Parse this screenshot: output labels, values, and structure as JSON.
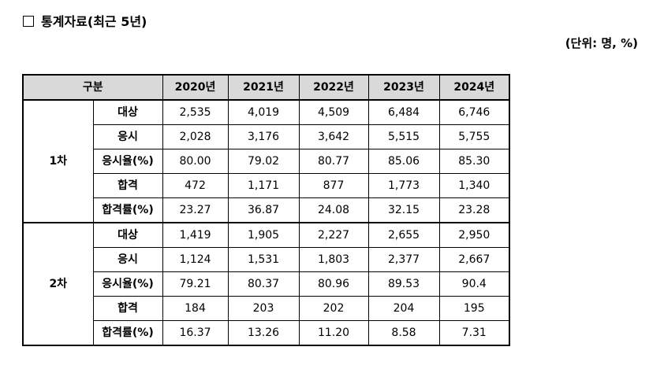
{
  "title": "통계자료(최근 5년)",
  "unit": "(단위: 명, %)",
  "table": {
    "header": [
      "구분",
      "2020년",
      "2021년",
      "2022년",
      "2023년",
      "2024년"
    ],
    "groups": [
      {
        "label": "1차",
        "rows": [
          {
            "label": "대상",
            "values": [
              "2,535",
              "4,019",
              "4,509",
              "6,484",
              "6,746"
            ]
          },
          {
            "label": "응시",
            "values": [
              "2,028",
              "3,176",
              "3,642",
              "5,515",
              "5,755"
            ]
          },
          {
            "label": "응시율(%)",
            "values": [
              "80.00",
              "79.02",
              "80.77",
              "85.06",
              "85.30"
            ]
          },
          {
            "label": "합격",
            "values": [
              "472",
              "1,171",
              "877",
              "1,773",
              "1,340"
            ]
          },
          {
            "label": "합격률(%)",
            "values": [
              "23.27",
              "36.87",
              "24.08",
              "32.15",
              "23.28"
            ]
          }
        ]
      },
      {
        "label": "2차",
        "rows": [
          {
            "label": "대상",
            "values": [
              "1,419",
              "1,905",
              "2,227",
              "2,655",
              "2,950"
            ]
          },
          {
            "label": "응시",
            "values": [
              "1,124",
              "1,531",
              "1,803",
              "2,377",
              "2,667"
            ]
          },
          {
            "label": "응시율(%)",
            "values": [
              "79.21",
              "80.37",
              "80.96",
              "89.53",
              "90.4"
            ]
          },
          {
            "label": "합격",
            "values": [
              "184",
              "203",
              "202",
              "204",
              "195"
            ]
          },
          {
            "label": "합격률(%)",
            "values": [
              "16.37",
              "13.26",
              "11.20",
              "8.58",
              "7.31"
            ]
          }
        ]
      }
    ]
  }
}
